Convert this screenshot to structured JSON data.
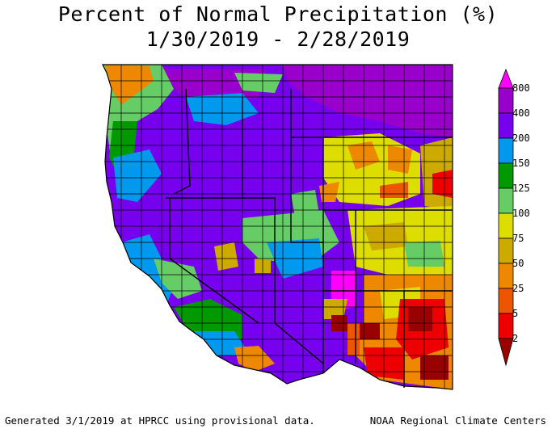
{
  "title_line1": "Percent of Normal Precipitation (%)",
  "title_line2": "1/30/2019 - 2/28/2019",
  "footer_left": "Generated 3/1/2019 at HPRCC using provisional data.",
  "footer_right": "NOAA Regional Climate Centers",
  "legend": {
    "labels": [
      "800",
      "400",
      "200",
      "150",
      "125",
      "100",
      "75",
      "50",
      "25",
      "5",
      "2"
    ],
    "colors": {
      "above_800": "#ff00ff",
      "400_800": "#9900cc",
      "200_400": "#7700ee",
      "150_200": "#0099ee",
      "125_150": "#009900",
      "100_125": "#66cc66",
      "75_100": "#dddd00",
      "50_75": "#ccaa00",
      "25_50": "#ee8800",
      "5_25": "#ee5500",
      "2_5": "#ee0000",
      "below_2": "#990000"
    }
  }
}
